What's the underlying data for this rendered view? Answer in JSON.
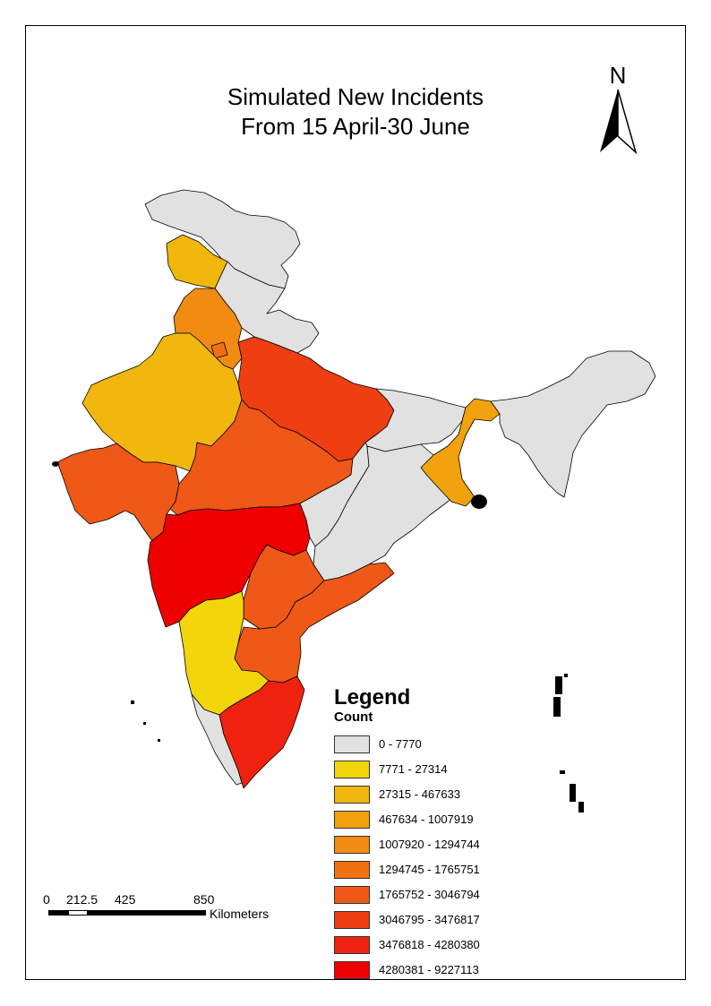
{
  "title": {
    "line1": "Simulated New Incidents",
    "line2": "From 15 April-30 June"
  },
  "north_arrow": {
    "label": "N",
    "icon": "north-arrow-icon"
  },
  "legend": {
    "title": "Legend",
    "field": "Count",
    "classes": [
      {
        "label": "0 - 7770",
        "color": "#e1e1e1"
      },
      {
        "label": "7771 - 27314",
        "color": "#f2d50b"
      },
      {
        "label": "27315 - 467633",
        "color": "#f1b70d"
      },
      {
        "label": "467634 - 1007919",
        "color": "#f1a20c"
      },
      {
        "label": "1007920 - 1294744",
        "color": "#f18b11"
      },
      {
        "label": "1294745 - 1765751",
        "color": "#f17112"
      },
      {
        "label": "1765752 - 3046794",
        "color": "#ef5816"
      },
      {
        "label": "3046795 - 3476817",
        "color": "#ee3e12"
      },
      {
        "label": "3476818 - 4280380",
        "color": "#ee220f"
      },
      {
        "label": "4280381 - 9227113",
        "color": "#ee0000"
      }
    ]
  },
  "scale_bar": {
    "ticks": [
      "0",
      "212.5",
      "425",
      "850"
    ],
    "units": "Kilometers"
  },
  "regions": [
    {
      "name": "jammu-kashmir",
      "class": 0
    },
    {
      "name": "punjab",
      "class": 2
    },
    {
      "name": "himachal-uttarakhand",
      "class": 0
    },
    {
      "name": "haryana",
      "class": 4
    },
    {
      "name": "delhi",
      "class": 5
    },
    {
      "name": "rajasthan",
      "class": 2
    },
    {
      "name": "uttar-pradesh",
      "class": 7
    },
    {
      "name": "bihar",
      "class": 0
    },
    {
      "name": "gujarat",
      "class": 6
    },
    {
      "name": "madhya-pradesh",
      "class": 6
    },
    {
      "name": "maharashtra",
      "class": 9
    },
    {
      "name": "chhattisgarh",
      "class": 0
    },
    {
      "name": "odisha",
      "class": 0
    },
    {
      "name": "west-bengal",
      "class": 3
    },
    {
      "name": "northeast",
      "class": 0
    },
    {
      "name": "telangana",
      "class": 6
    },
    {
      "name": "andhra-pradesh",
      "class": 6
    },
    {
      "name": "karnataka",
      "class": 1
    },
    {
      "name": "kerala",
      "class": 0
    },
    {
      "name": "tamil-nadu",
      "class": 8
    }
  ]
}
